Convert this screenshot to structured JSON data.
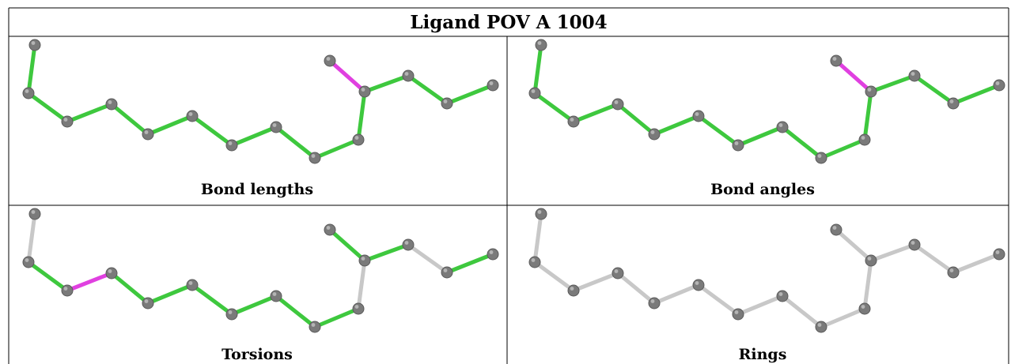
{
  "title": "Ligand POV A 1004",
  "colors": {
    "ok_bond": "#3ec83e",
    "outlier_bond": "#e040e0",
    "unassessed_bond": "#c8c8c8",
    "atom": "#7a7a7a"
  },
  "panels": [
    {
      "key": "bond-lengths",
      "caption": "Bond lengths",
      "outlier_bonds": [
        [
          10,
          11
        ]
      ],
      "unassessed_bonds": []
    },
    {
      "key": "bond-angles",
      "caption": "Bond angles",
      "outlier_bonds": [
        [
          8,
          10
        ],
        [
          10,
          11
        ]
      ],
      "unassessed_bonds": []
    },
    {
      "key": "torsions",
      "caption": "Torsions",
      "outlier_bonds": [
        [
          2,
          3
        ]
      ],
      "unassessed_bonds": [
        [
          0,
          1
        ],
        [
          9,
          10
        ],
        [
          12,
          13
        ]
      ]
    },
    {
      "key": "rings",
      "caption": "Rings",
      "outlier_bonds": [],
      "unassessed_bonds": "all"
    }
  ]
}
